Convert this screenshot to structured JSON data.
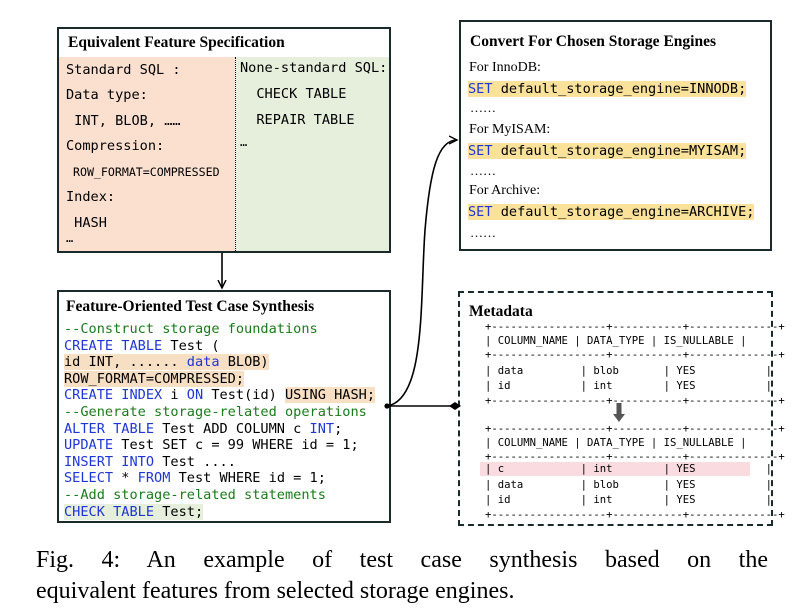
{
  "spec": {
    "title": "Equivalent Feature Specification",
    "standard_lines": [
      "Standard SQL :",
      "Data type:",
      " INT, BLOB, ……",
      "Compression:",
      " ROW_FORMAT=COMPRESSED",
      "Index:",
      " HASH",
      "…"
    ],
    "nonstandard_lines": [
      "None-standard SQL:",
      "  CHECK TABLE",
      "  REPAIR TABLE",
      "…"
    ]
  },
  "convert": {
    "title": "Convert For Chosen Storage Engines",
    "engines": [
      {
        "label": "For InnoDB:",
        "set_kw": "SET",
        "stmt": " default_storage_engine=INNODB;",
        "more": "……"
      },
      {
        "label": "For MyISAM:",
        "set_kw": "SET",
        "stmt": " default_storage_engine=MYISAM;",
        "more": "……"
      },
      {
        "label": "For Archive:",
        "set_kw": "SET",
        "stmt": " default_storage_engine=ARCHIVE;",
        "more": "……"
      }
    ]
  },
  "synth": {
    "title": "Feature-Oriented Test Case Synthesis",
    "l1_comment": "--Construct storage foundations",
    "l2_kw": "CREATE TABLE",
    "l2_rest": " Test (",
    "l3_a": "id INT, ...... ",
    "l3_kw": "data",
    "l3_b": " BLOB)",
    "l4": "ROW_FORMAT=COMPRESSED;",
    "l5_kw1": "CREATE INDEX",
    "l5_i": " i ",
    "l5_kw2": "ON",
    "l5_b": " Test(id) ",
    "l5_hl": "USING HASH;",
    "l6_comment": "--Generate storage-related operations",
    "l7_kw": "ALTER TABLE",
    "l7_rest": " Test ADD COLUMN c ",
    "l7_kw2": "INT",
    "l7_end": ";",
    "l8_kw": "UPDATE",
    "l8_rest": " Test SET c = 99 WHERE id = 1;",
    "l9_kw": "INSERT INTO",
    "l9_rest": " Test ....",
    "l10_kw": "SELECT",
    "l10_a": " * ",
    "l10_kw2": "FROM",
    "l10_rest": " Test WHERE id = 1;",
    "l11_comment": "--Add storage-related statements",
    "l12_kw": "CHECK TABLE",
    "l12_rest": " Test;"
  },
  "metadata": {
    "title": "Metadata",
    "border": "+------------------+-----------+--------------+",
    "header": "| COLUMN_NAME | DATA_TYPE | IS_NULLABLE |",
    "table1_rows": [
      "| data         | blob       | YES           |",
      "| id           | int        | YES           |"
    ],
    "table2_new_row": "| c            | int        | YES           |",
    "table2_rows": [
      "| data         | blob       | YES           |",
      "| id           | int        | YES           |"
    ]
  },
  "caption": {
    "line1": "Fig. 4: An example of test case synthesis based on the",
    "line2": "equivalent features from selected storage engines."
  },
  "colors": {
    "standard_bg": "#fbe0d0",
    "nonstandard_bg": "#e5efdc",
    "keyword": "#1f36d6",
    "comment": "#1b7a1b",
    "highlight_orange": "#f7dfc3",
    "highlight_yellow": "#fbe29a",
    "highlight_pink": "#f9dbe0"
  }
}
